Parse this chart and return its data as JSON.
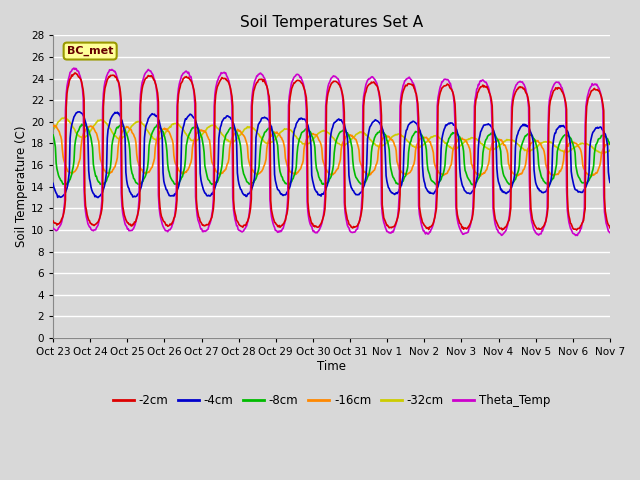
{
  "title": "Soil Temperatures Set A",
  "xlabel": "Time",
  "ylabel": "Soil Temperature (C)",
  "ylim": [
    0,
    28
  ],
  "yticks": [
    0,
    2,
    4,
    6,
    8,
    10,
    12,
    14,
    16,
    18,
    20,
    22,
    24,
    26,
    28
  ],
  "xtick_labels": [
    "Oct 23",
    "Oct 24",
    "Oct 25",
    "Oct 26",
    "Oct 27",
    "Oct 28",
    "Oct 29",
    "Oct 30",
    "Oct 31",
    "Nov 1",
    "Nov 2",
    "Nov 3",
    "Nov 4",
    "Nov 5",
    "Nov 6",
    "Nov 7"
  ],
  "series": {
    "-2cm": {
      "color": "#dd0000",
      "lw": 1.2
    },
    "-4cm": {
      "color": "#0000cc",
      "lw": 1.2
    },
    "-8cm": {
      "color": "#00bb00",
      "lw": 1.2
    },
    "-16cm": {
      "color": "#ff8800",
      "lw": 1.2
    },
    "-32cm": {
      "color": "#cccc00",
      "lw": 1.2
    },
    "Theta_Temp": {
      "color": "#cc00cc",
      "lw": 1.2
    }
  },
  "legend_label": "BC_met",
  "background_color": "#d8d8d8",
  "plot_bg_color": "#d8d8d8",
  "grid_color": "#ffffff",
  "title_fontsize": 11,
  "n_days": 15
}
